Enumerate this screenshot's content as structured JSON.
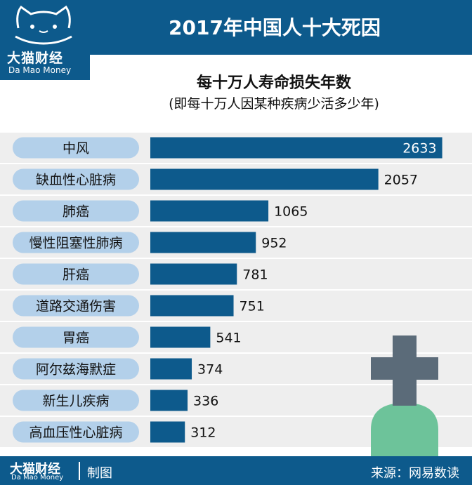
{
  "header": {
    "title": "2017年中国人十大死因"
  },
  "logo": {
    "name": "大猫财经",
    "sub": "Da Mao Money"
  },
  "footer": {
    "brand": "大猫财经",
    "brand_sub": "Da Mao Money",
    "credit": "制图",
    "source": "来源：网易数读"
  },
  "colors": {
    "brand": "#0d5a8c",
    "bar": "#0d5a8c",
    "label_pill": "#b3d0ea",
    "row_band": "#eeeeee",
    "cross": "#5b6b79",
    "mound": "#6dc39a"
  },
  "chart_data": {
    "type": "bar",
    "orientation": "horizontal",
    "title": "每十万人寿命损失年数",
    "subtitle": "(即每十万人因某种疾病少活多少年)",
    "categories": [
      "中风",
      "缺血性心脏病",
      "肺癌",
      "慢性阻塞性肺病",
      "肝癌",
      "道路交通伤害",
      "胃癌",
      "阿尔兹海默症",
      "新生儿疾病",
      "高血压性心脏病"
    ],
    "values": [
      2633,
      2057,
      1065,
      952,
      781,
      751,
      541,
      374,
      336,
      312
    ],
    "value_labels": [
      "2633",
      "2057",
      "1065",
      "952",
      "781",
      "751",
      "541",
      "374",
      "336",
      "312"
    ],
    "xlim": [
      0,
      2680
    ],
    "grid": false,
    "legend": "none"
  }
}
